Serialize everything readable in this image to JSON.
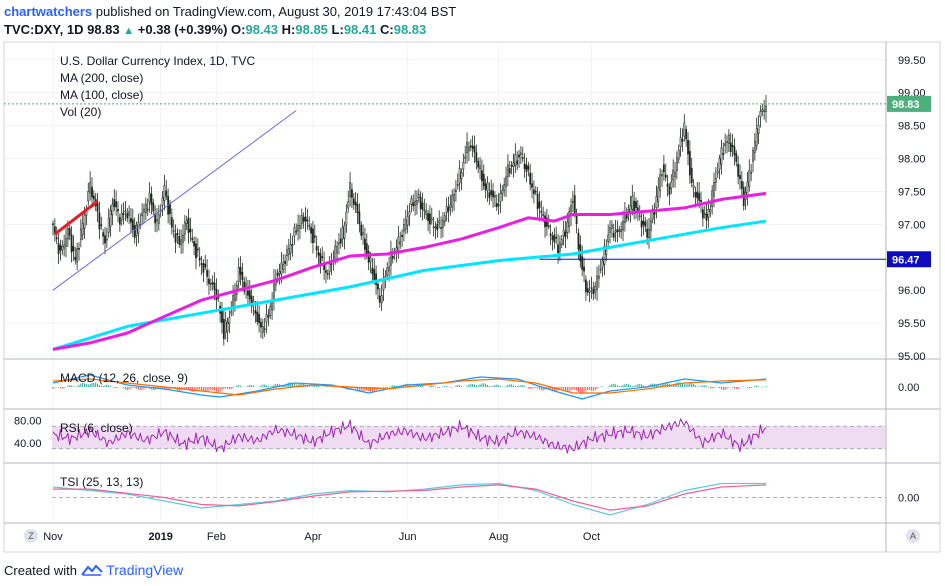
{
  "header": {
    "author": "chartwatchers",
    "published_text": "published on TradingView.com, August 30, 2019 17:43:04 BST",
    "symbol": "TVC:DXY, 1D",
    "last": "98.83",
    "change_arrow": "▲",
    "change": "+0.38 (+0.39%)",
    "o_label": "O:",
    "o": "98.43",
    "h_label": "H:",
    "h": "98.85",
    "l_label": "L:",
    "l": "98.41",
    "c_label": "C:",
    "c": "98.83"
  },
  "legend": {
    "title": "U.S. Dollar Currency Index, 1D, TVC",
    "ma200": "MA (200, close)",
    "ma100": "MA (100, close)",
    "vol": "Vol (20)",
    "macd": "MACD (12, 26, close, 9)",
    "rsi": "RSI (6, close)",
    "tsi": "TSI (25, 13, 13)"
  },
  "footer": {
    "created_with": "Created with",
    "brand": "TradingView"
  },
  "corner_buttons": {
    "z": "Z",
    "a": "A"
  },
  "colors": {
    "up": "#26a69a",
    "down": "#ef5350",
    "candle": "#1e2a1e",
    "ma200": "#00e5ff",
    "ma100": "#e91ee0",
    "last_price_label": "#4caf7d",
    "level_line": "#0d0dbf",
    "trendline": "#6b6bdc",
    "red_segment": "#e51c23",
    "macd_line": "#2196f3",
    "macd_signal": "#ff6d00",
    "rsi_line": "#9c27b0",
    "rsi_band": "#e1bee7",
    "tsi_line": "#60c8e6",
    "tsi_signal": "#f06292"
  },
  "chart_data": {
    "type": "candlestick",
    "symbol": "TVC:DXY",
    "timeframe": "1D",
    "price_axis": {
      "ticks": [
        "99.50",
        "99.00",
        "98.50",
        "98.00",
        "97.50",
        "97.00",
        "96.50",
        "96.00",
        "95.50",
        "95.00"
      ],
      "range": [
        94.97,
        99.74
      ]
    },
    "time_axis": {
      "ticks": [
        "Nov",
        "2019",
        "Feb",
        "Apr",
        "Jun",
        "Aug",
        "Oct"
      ]
    },
    "last_price": 98.83,
    "horizontal_level": 96.47,
    "price_path": [
      [
        0,
        96.95
      ],
      [
        4,
        96.55
      ],
      [
        8,
        96.9
      ],
      [
        12,
        96.45
      ],
      [
        16,
        97.0
      ],
      [
        20,
        97.6
      ],
      [
        24,
        97.15
      ],
      [
        28,
        96.7
      ],
      [
        32,
        97.35
      ],
      [
        36,
        97.1
      ],
      [
        40,
        97.2
      ],
      [
        44,
        96.85
      ],
      [
        48,
        97.15
      ],
      [
        52,
        97.4
      ],
      [
        56,
        97.0
      ],
      [
        60,
        97.55
      ],
      [
        64,
        96.95
      ],
      [
        68,
        96.7
      ],
      [
        72,
        97.05
      ],
      [
        76,
        96.65
      ],
      [
        80,
        96.4
      ],
      [
        84,
        96.15
      ],
      [
        88,
        95.95
      ],
      [
        92,
        95.35
      ],
      [
        96,
        95.7
      ],
      [
        100,
        96.3
      ],
      [
        104,
        96.0
      ],
      [
        108,
        95.75
      ],
      [
        112,
        95.4
      ],
      [
        116,
        95.6
      ],
      [
        120,
        96.2
      ],
      [
        124,
        96.4
      ],
      [
        128,
        96.7
      ],
      [
        132,
        97.0
      ],
      [
        136,
        97.1
      ],
      [
        140,
        96.8
      ],
      [
        144,
        96.45
      ],
      [
        148,
        96.25
      ],
      [
        152,
        96.6
      ],
      [
        156,
        96.85
      ],
      [
        160,
        97.55
      ],
      [
        164,
        97.15
      ],
      [
        168,
        96.65
      ],
      [
        172,
        96.3
      ],
      [
        176,
        95.85
      ],
      [
        180,
        96.35
      ],
      [
        184,
        96.6
      ],
      [
        188,
        96.85
      ],
      [
        192,
        97.25
      ],
      [
        196,
        97.4
      ],
      [
        200,
        97.2
      ],
      [
        204,
        97.0
      ],
      [
        208,
        96.95
      ],
      [
        212,
        97.2
      ],
      [
        216,
        97.45
      ],
      [
        220,
        97.85
      ],
      [
        224,
        98.25
      ],
      [
        228,
        98.0
      ],
      [
        232,
        97.6
      ],
      [
        236,
        97.45
      ],
      [
        240,
        97.3
      ],
      [
        244,
        97.75
      ],
      [
        248,
        97.95
      ],
      [
        252,
        98.05
      ],
      [
        256,
        97.75
      ],
      [
        260,
        97.4
      ],
      [
        264,
        97.1
      ],
      [
        268,
        96.85
      ],
      [
        272,
        96.65
      ],
      [
        276,
        96.9
      ],
      [
        280,
        97.4
      ],
      [
        284,
        96.45
      ],
      [
        288,
        95.95
      ],
      [
        292,
        96.05
      ],
      [
        296,
        96.45
      ],
      [
        300,
        96.95
      ],
      [
        304,
        96.85
      ],
      [
        308,
        97.1
      ],
      [
        312,
        97.35
      ],
      [
        316,
        97.1
      ],
      [
        320,
        96.85
      ],
      [
        324,
        97.25
      ],
      [
        328,
        97.85
      ],
      [
        332,
        97.5
      ],
      [
        336,
        98.0
      ],
      [
        340,
        98.5
      ],
      [
        344,
        97.6
      ],
      [
        348,
        97.35
      ],
      [
        352,
        97.05
      ],
      [
        356,
        97.6
      ],
      [
        360,
        98.1
      ],
      [
        364,
        98.3
      ],
      [
        368,
        97.95
      ],
      [
        372,
        97.35
      ],
      [
        376,
        97.9
      ],
      [
        380,
        98.6
      ],
      [
        384,
        98.83
      ]
    ],
    "ma200": [
      [
        0,
        95.1
      ],
      [
        40,
        95.45
      ],
      [
        80,
        95.65
      ],
      [
        120,
        95.85
      ],
      [
        160,
        96.05
      ],
      [
        200,
        96.3
      ],
      [
        240,
        96.45
      ],
      [
        260,
        96.5
      ],
      [
        280,
        96.55
      ],
      [
        300,
        96.65
      ],
      [
        320,
        96.75
      ],
      [
        340,
        96.85
      ],
      [
        360,
        96.95
      ],
      [
        384,
        97.05
      ]
    ],
    "ma100": [
      [
        0,
        95.1
      ],
      [
        20,
        95.2
      ],
      [
        40,
        95.35
      ],
      [
        60,
        95.6
      ],
      [
        80,
        95.85
      ],
      [
        100,
        96.0
      ],
      [
        120,
        96.15
      ],
      [
        140,
        96.35
      ],
      [
        160,
        96.52
      ],
      [
        180,
        96.55
      ],
      [
        200,
        96.65
      ],
      [
        220,
        96.78
      ],
      [
        240,
        96.95
      ],
      [
        256,
        97.1
      ],
      [
        270,
        97.05
      ],
      [
        280,
        97.15
      ],
      [
        300,
        97.15
      ],
      [
        320,
        97.2
      ],
      [
        340,
        97.25
      ],
      [
        360,
        97.38
      ],
      [
        384,
        97.47
      ]
    ],
    "macd": {
      "zero_label": "0.00",
      "line": [
        [
          0,
          0.1
        ],
        [
          20,
          0.3
        ],
        [
          40,
          0.05
        ],
        [
          60,
          -0.05
        ],
        [
          80,
          -0.2
        ],
        [
          90,
          -0.25
        ],
        [
          110,
          -0.1
        ],
        [
          130,
          0.1
        ],
        [
          150,
          0.05
        ],
        [
          170,
          -0.15
        ],
        [
          190,
          0.05
        ],
        [
          210,
          0.1
        ],
        [
          230,
          0.25
        ],
        [
          250,
          0.2
        ],
        [
          270,
          -0.1
        ],
        [
          285,
          -0.3
        ],
        [
          300,
          -0.1
        ],
        [
          320,
          0.0
        ],
        [
          340,
          0.2
        ],
        [
          360,
          0.1
        ],
        [
          384,
          0.2
        ]
      ],
      "signal": [
        [
          0,
          0.15
        ],
        [
          20,
          0.2
        ],
        [
          40,
          0.1
        ],
        [
          60,
          0.0
        ],
        [
          80,
          -0.1
        ],
        [
          100,
          -0.2
        ],
        [
          120,
          -0.05
        ],
        [
          140,
          0.05
        ],
        [
          160,
          0.0
        ],
        [
          180,
          -0.05
        ],
        [
          200,
          0.05
        ],
        [
          220,
          0.15
        ],
        [
          240,
          0.2
        ],
        [
          260,
          0.1
        ],
        [
          280,
          -0.15
        ],
        [
          300,
          -0.15
        ],
        [
          320,
          -0.05
        ],
        [
          340,
          0.1
        ],
        [
          360,
          0.15
        ],
        [
          384,
          0.18
        ]
      ]
    },
    "rsi": {
      "ticks": [
        "80.00",
        "40.00"
      ],
      "band": [
        30,
        70
      ],
      "values": [
        [
          0,
          55
        ],
        [
          10,
          48
        ],
        [
          20,
          62
        ],
        [
          30,
          40
        ],
        [
          40,
          58
        ],
        [
          50,
          45
        ],
        [
          60,
          60
        ],
        [
          70,
          38
        ],
        [
          80,
          50
        ],
        [
          90,
          30
        ],
        [
          100,
          52
        ],
        [
          110,
          44
        ],
        [
          120,
          64
        ],
        [
          130,
          56
        ],
        [
          140,
          42
        ],
        [
          150,
          60
        ],
        [
          160,
          72
        ],
        [
          170,
          38
        ],
        [
          180,
          55
        ],
        [
          190,
          62
        ],
        [
          200,
          48
        ],
        [
          210,
          58
        ],
        [
          220,
          70
        ],
        [
          230,
          50
        ],
        [
          240,
          42
        ],
        [
          250,
          60
        ],
        [
          260,
          52
        ],
        [
          270,
          35
        ],
        [
          280,
          30
        ],
        [
          290,
          48
        ],
        [
          300,
          56
        ],
        [
          310,
          62
        ],
        [
          320,
          52
        ],
        [
          330,
          68
        ],
        [
          340,
          78
        ],
        [
          350,
          40
        ],
        [
          360,
          58
        ],
        [
          370,
          34
        ],
        [
          384,
          68
        ]
      ]
    },
    "tsi": {
      "zero_label": "0.00",
      "line": [
        [
          0,
          15
        ],
        [
          20,
          10
        ],
        [
          40,
          5
        ],
        [
          60,
          -5
        ],
        [
          80,
          -15
        ],
        [
          100,
          -10
        ],
        [
          120,
          -5
        ],
        [
          140,
          5
        ],
        [
          160,
          10
        ],
        [
          180,
          8
        ],
        [
          200,
          12
        ],
        [
          220,
          18
        ],
        [
          240,
          20
        ],
        [
          260,
          10
        ],
        [
          280,
          -10
        ],
        [
          300,
          -25
        ],
        [
          320,
          -10
        ],
        [
          340,
          10
        ],
        [
          360,
          20
        ],
        [
          384,
          20
        ]
      ],
      "signal": [
        [
          0,
          12
        ],
        [
          20,
          12
        ],
        [
          40,
          6
        ],
        [
          60,
          0
        ],
        [
          80,
          -10
        ],
        [
          100,
          -12
        ],
        [
          120,
          -6
        ],
        [
          140,
          2
        ],
        [
          160,
          8
        ],
        [
          180,
          9
        ],
        [
          200,
          10
        ],
        [
          220,
          15
        ],
        [
          240,
          18
        ],
        [
          260,
          12
        ],
        [
          280,
          -5
        ],
        [
          300,
          -18
        ],
        [
          320,
          -12
        ],
        [
          340,
          5
        ],
        [
          360,
          15
        ],
        [
          384,
          18
        ]
      ]
    }
  }
}
